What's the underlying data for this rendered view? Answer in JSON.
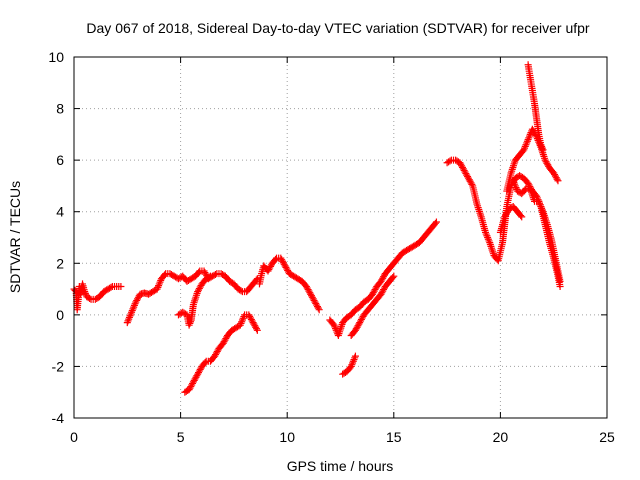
{
  "chart_data": {
    "type": "scatter",
    "title": "Day 067 of 2018, Sidereal Day-to-day VTEC variation (SDTVAR) for receiver ufpr",
    "xlabel": "GPS time / hours",
    "ylabel": "SDTVAR / TECUs",
    "xlim": [
      0,
      25
    ],
    "ylim": [
      -4,
      10
    ],
    "xticks": [
      0,
      5,
      10,
      15,
      20,
      25
    ],
    "yticks": [
      -4,
      -2,
      0,
      2,
      4,
      6,
      8,
      10
    ],
    "xtick_labels": [
      "0",
      "5",
      "10",
      "15",
      "20",
      "25"
    ],
    "ytick_labels": [
      "-4",
      "-2",
      "0",
      "2",
      "4",
      "6",
      "8",
      "10"
    ],
    "grid": true,
    "marker": "plus",
    "color": "#ff0000",
    "series": [
      {
        "name": "s1",
        "points": [
          [
            0.0,
            1.0
          ],
          [
            0.1,
            0.9
          ],
          [
            0.15,
            0.2
          ],
          [
            0.2,
            0.6
          ],
          [
            0.25,
            1.1
          ],
          [
            0.3,
            0.8
          ],
          [
            0.4,
            1.2
          ],
          [
            0.5,
            0.9
          ],
          [
            0.6,
            0.7
          ],
          [
            0.8,
            0.6
          ],
          [
            1.0,
            0.6
          ],
          [
            1.2,
            0.7
          ],
          [
            1.4,
            0.9
          ],
          [
            1.6,
            1.0
          ],
          [
            1.8,
            1.1
          ],
          [
            2.0,
            1.1
          ],
          [
            2.2,
            1.1
          ]
        ]
      },
      {
        "name": "s2",
        "points": [
          [
            2.5,
            -0.3
          ],
          [
            2.7,
            0.1
          ],
          [
            2.9,
            0.5
          ],
          [
            3.1,
            0.8
          ],
          [
            3.3,
            0.85
          ],
          [
            3.5,
            0.8
          ],
          [
            3.7,
            0.9
          ],
          [
            3.9,
            1.0
          ],
          [
            4.1,
            1.4
          ],
          [
            4.3,
            1.6
          ],
          [
            4.5,
            1.6
          ],
          [
            4.7,
            1.5
          ],
          [
            4.9,
            1.4
          ],
          [
            5.1,
            1.5
          ],
          [
            5.3,
            1.3
          ],
          [
            5.5,
            1.4
          ],
          [
            5.7,
            1.5
          ],
          [
            5.9,
            1.7
          ],
          [
            6.1,
            1.7
          ],
          [
            6.3,
            1.4
          ],
          [
            6.5,
            1.5
          ],
          [
            6.7,
            1.6
          ],
          [
            6.9,
            1.6
          ],
          [
            7.1,
            1.5
          ],
          [
            7.3,
            1.3
          ],
          [
            7.5,
            1.2
          ],
          [
            7.7,
            1.0
          ],
          [
            7.9,
            0.9
          ],
          [
            8.1,
            0.9
          ],
          [
            8.3,
            1.1
          ],
          [
            8.5,
            1.3
          ],
          [
            8.6,
            1.4
          ]
        ]
      },
      {
        "name": "s3",
        "points": [
          [
            4.9,
            0.0
          ],
          [
            5.1,
            0.1
          ],
          [
            5.3,
            0.0
          ],
          [
            5.4,
            -0.4
          ],
          [
            5.5,
            -0.2
          ],
          [
            5.6,
            0.4
          ],
          [
            5.8,
            0.9
          ],
          [
            6.0,
            1.2
          ],
          [
            6.2,
            1.4
          ],
          [
            6.4,
            1.5
          ]
        ]
      },
      {
        "name": "s4",
        "points": [
          [
            5.2,
            -3.0
          ],
          [
            5.4,
            -2.9
          ],
          [
            5.6,
            -2.6
          ],
          [
            5.8,
            -2.3
          ],
          [
            6.0,
            -2.0
          ],
          [
            6.2,
            -1.8
          ],
          [
            6.4,
            -1.8
          ],
          [
            6.6,
            -1.6
          ],
          [
            6.8,
            -1.3
          ],
          [
            7.0,
            -1.1
          ],
          [
            7.2,
            -0.8
          ],
          [
            7.4,
            -0.6
          ],
          [
            7.6,
            -0.5
          ],
          [
            7.8,
            -0.4
          ],
          [
            8.0,
            0.0
          ],
          [
            8.2,
            0.0
          ],
          [
            8.4,
            -0.3
          ],
          [
            8.6,
            -0.6
          ]
        ]
      },
      {
        "name": "s5",
        "points": [
          [
            8.7,
            1.2
          ],
          [
            8.8,
            1.6
          ],
          [
            8.9,
            1.9
          ],
          [
            9.0,
            1.8
          ],
          [
            9.1,
            1.7
          ],
          [
            9.3,
            2.0
          ],
          [
            9.5,
            2.2
          ],
          [
            9.7,
            2.2
          ],
          [
            9.9,
            1.9
          ],
          [
            10.1,
            1.6
          ],
          [
            10.3,
            1.5
          ],
          [
            10.5,
            1.4
          ],
          [
            10.7,
            1.3
          ],
          [
            10.9,
            1.1
          ],
          [
            11.1,
            0.8
          ],
          [
            11.3,
            0.5
          ],
          [
            11.5,
            0.2
          ]
        ]
      },
      {
        "name": "s6",
        "points": [
          [
            12.0,
            -0.2
          ],
          [
            12.2,
            -0.4
          ],
          [
            12.4,
            -0.8
          ],
          [
            12.6,
            -0.3
          ],
          [
            12.8,
            -0.1
          ],
          [
            13.0,
            0.0
          ],
          [
            13.2,
            0.2
          ],
          [
            13.4,
            0.3
          ],
          [
            13.6,
            0.5
          ],
          [
            13.8,
            0.6
          ],
          [
            14.0,
            0.8
          ],
          [
            14.2,
            1.1
          ],
          [
            14.4,
            1.3
          ],
          [
            14.6,
            1.6
          ],
          [
            14.8,
            1.8
          ],
          [
            15.0,
            2.0
          ],
          [
            15.2,
            2.2
          ],
          [
            15.4,
            2.4
          ],
          [
            15.6,
            2.5
          ],
          [
            15.8,
            2.6
          ],
          [
            16.0,
            2.7
          ],
          [
            16.2,
            2.8
          ],
          [
            16.4,
            3.0
          ],
          [
            16.6,
            3.2
          ],
          [
            16.8,
            3.4
          ],
          [
            17.0,
            3.6
          ]
        ]
      },
      {
        "name": "s7",
        "points": [
          [
            12.6,
            -2.3
          ],
          [
            12.8,
            -2.2
          ],
          [
            13.0,
            -2.0
          ],
          [
            13.2,
            -1.6
          ]
        ]
      },
      {
        "name": "s8",
        "points": [
          [
            13.0,
            -0.8
          ],
          [
            13.2,
            -0.6
          ],
          [
            13.4,
            -0.3
          ],
          [
            13.6,
            0.0
          ],
          [
            13.8,
            0.2
          ],
          [
            14.0,
            0.4
          ],
          [
            14.2,
            0.6
          ],
          [
            14.4,
            0.8
          ],
          [
            14.6,
            1.1
          ],
          [
            14.8,
            1.3
          ],
          [
            15.0,
            1.5
          ]
        ]
      },
      {
        "name": "s9",
        "points": [
          [
            17.5,
            5.9
          ],
          [
            17.7,
            6.0
          ],
          [
            17.9,
            6.0
          ],
          [
            18.1,
            5.9
          ],
          [
            18.3,
            5.6
          ],
          [
            18.5,
            5.3
          ],
          [
            18.7,
            5.0
          ],
          [
            18.9,
            4.3
          ],
          [
            19.1,
            3.8
          ],
          [
            19.3,
            3.2
          ],
          [
            19.5,
            2.8
          ],
          [
            19.7,
            2.3
          ],
          [
            19.9,
            2.1
          ],
          [
            20.1,
            2.8
          ],
          [
            20.2,
            3.5
          ],
          [
            20.3,
            4.2
          ],
          [
            20.5,
            5.0
          ],
          [
            20.7,
            5.3
          ],
          [
            20.9,
            5.4
          ],
          [
            21.1,
            5.3
          ],
          [
            21.3,
            5.1
          ],
          [
            21.5,
            4.8
          ],
          [
            21.7,
            4.6
          ],
          [
            21.9,
            4.2
          ],
          [
            22.1,
            3.5
          ],
          [
            22.3,
            2.8
          ],
          [
            22.5,
            2.2
          ],
          [
            22.7,
            1.5
          ],
          [
            22.8,
            1.1
          ]
        ]
      },
      {
        "name": "s10",
        "points": [
          [
            20.0,
            3.2
          ],
          [
            20.2,
            3.8
          ],
          [
            20.4,
            4.1
          ],
          [
            20.6,
            4.2
          ],
          [
            20.8,
            4.0
          ],
          [
            21.0,
            3.8
          ]
        ]
      },
      {
        "name": "s11",
        "points": [
          [
            20.3,
            4.8
          ],
          [
            20.5,
            5.5
          ],
          [
            20.7,
            6.0
          ],
          [
            20.9,
            6.2
          ],
          [
            21.1,
            6.4
          ],
          [
            21.3,
            6.8
          ],
          [
            21.5,
            7.2
          ],
          [
            21.7,
            6.9
          ],
          [
            21.9,
            6.5
          ],
          [
            22.1,
            6.0
          ],
          [
            22.3,
            5.7
          ],
          [
            22.5,
            5.5
          ],
          [
            22.7,
            5.2
          ]
        ]
      },
      {
        "name": "s12",
        "points": [
          [
            21.3,
            9.7
          ],
          [
            21.4,
            9.2
          ],
          [
            21.5,
            8.7
          ],
          [
            21.6,
            8.2
          ],
          [
            21.7,
            7.6
          ],
          [
            21.8,
            7.0
          ],
          [
            21.9,
            6.6
          ],
          [
            22.0,
            6.4
          ]
        ]
      },
      {
        "name": "s13",
        "points": [
          [
            20.6,
            5.2
          ],
          [
            20.8,
            4.8
          ],
          [
            21.0,
            4.7
          ],
          [
            21.2,
            4.9
          ],
          [
            21.4,
            4.9
          ],
          [
            21.6,
            4.4
          ],
          [
            21.8,
            4.4
          ],
          [
            22.0,
            4.0
          ],
          [
            22.2,
            3.5
          ],
          [
            22.4,
            2.9
          ],
          [
            22.6,
            2.1
          ],
          [
            22.8,
            1.3
          ]
        ]
      }
    ]
  }
}
